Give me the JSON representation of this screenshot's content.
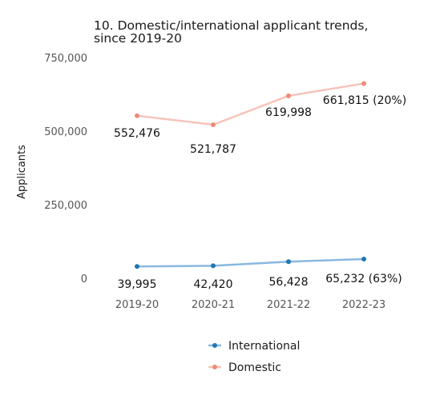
{
  "chart_data": {
    "type": "line",
    "title_lines": [
      "10. Domestic/international applicant trends,",
      "since 2019-20"
    ],
    "ylabel": "Applicants",
    "categories": [
      "2019-20",
      "2020-21",
      "2021-22",
      "2022-23"
    ],
    "ylim": [
      0,
      750000
    ],
    "yticks": [
      0,
      250000,
      500000,
      750000
    ],
    "ytick_labels": [
      "0",
      "250,000",
      "500,000",
      "750,000"
    ],
    "grid": false,
    "legend_position": "bottom",
    "series": [
      {
        "name": "International",
        "color": "#1f77b4",
        "line_color": "#8ab8e0",
        "values": [
          39995,
          42420,
          56428,
          65232
        ],
        "labels": [
          "39,995",
          "42,420",
          "56,428",
          "65,232 (63%)"
        ]
      },
      {
        "name": "Domestic",
        "color": "#f08a78",
        "line_color": "#f7c3b9",
        "values": [
          552476,
          521787,
          619998,
          661815
        ],
        "labels": [
          "552,476",
          "521,787",
          "619,998",
          "661,815 (20%)"
        ]
      }
    ]
  }
}
